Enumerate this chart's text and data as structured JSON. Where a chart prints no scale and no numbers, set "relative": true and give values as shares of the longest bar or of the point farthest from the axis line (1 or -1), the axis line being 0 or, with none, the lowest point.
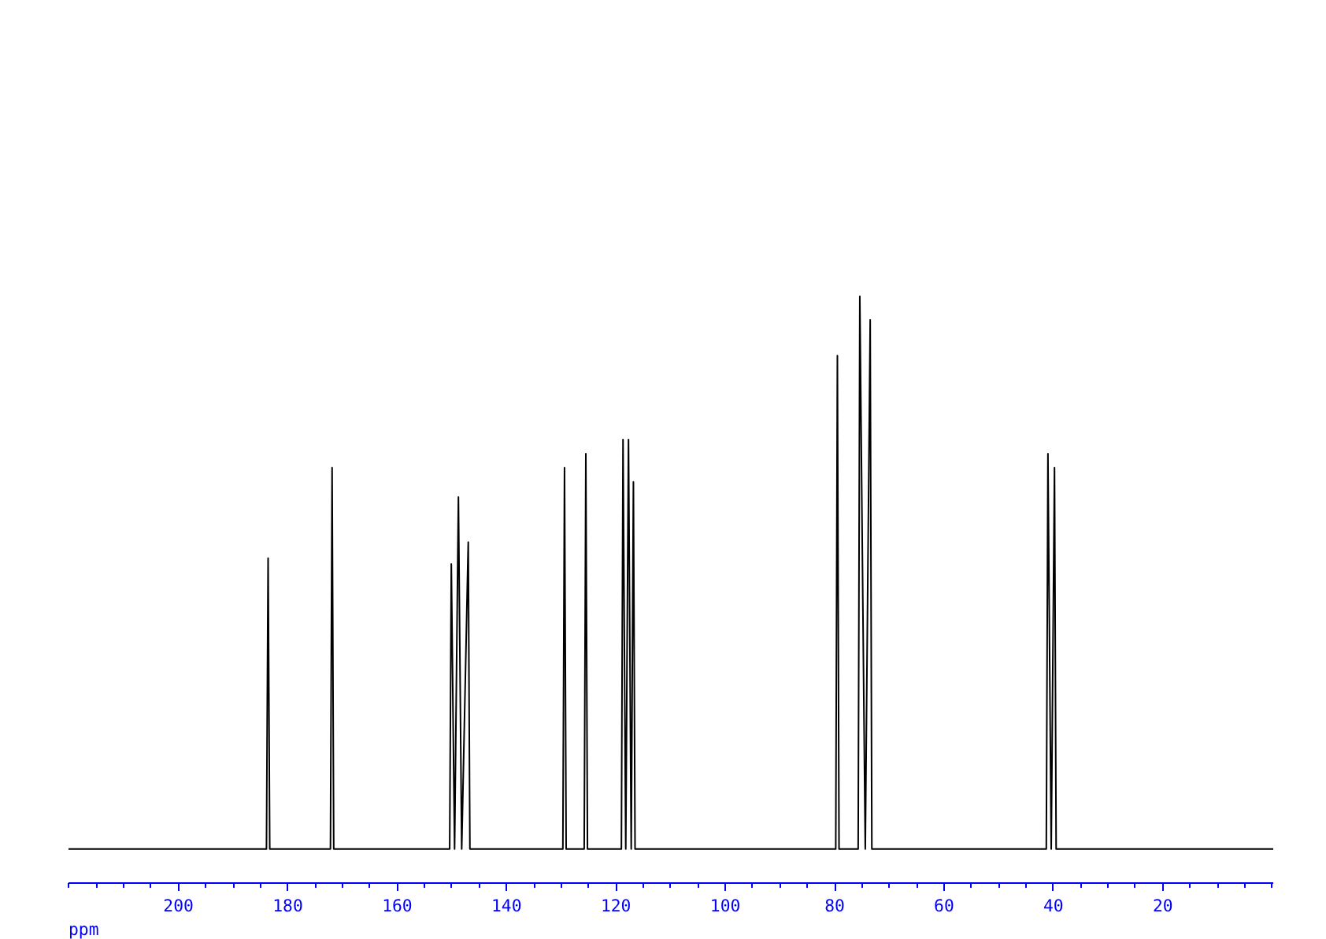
{
  "chart_data": {
    "type": "line",
    "relative": true,
    "xlabel": "ppm",
    "x": [
      220.1,
      183.9,
      183.6,
      183.3,
      172.2,
      171.9,
      171.6,
      150.4,
      150.1,
      149.5,
      148.8,
      148.2,
      147.0,
      146.7,
      129.7,
      129.4,
      129.1,
      125.8,
      125.5,
      125.2,
      119.0,
      118.7,
      118.2,
      117.7,
      117.2,
      116.8,
      116.5,
      79.8,
      79.5,
      79.2,
      75.7,
      75.4,
      74.4,
      73.5,
      73.2,
      41.3,
      41.0,
      40.4,
      39.8,
      39.5,
      -0.2
    ],
    "series": [
      {
        "color": "#000000",
        "values": [
          0.058,
          0.058,
          0.554,
          0.058,
          0.058,
          0.708,
          0.058,
          0.058,
          0.544,
          0.058,
          0.658,
          0.058,
          0.581,
          0.058,
          0.058,
          0.708,
          0.058,
          0.058,
          0.732,
          0.058,
          0.058,
          0.756,
          0.058,
          0.756,
          0.058,
          0.684,
          0.058,
          0.058,
          0.899,
          0.058,
          0.058,
          1,
          0.058,
          0.96,
          0.058,
          0.058,
          0.732,
          0.058,
          0.708,
          0.058,
          0.058
        ]
      }
    ],
    "xlim": [
      220.1,
      -0.2
    ],
    "xticks": [
      200,
      180,
      160,
      140,
      120,
      100,
      80,
      60,
      40,
      20
    ],
    "grid": false,
    "tick_labels": "x",
    "line_style": "solid",
    "marker": "none"
  }
}
